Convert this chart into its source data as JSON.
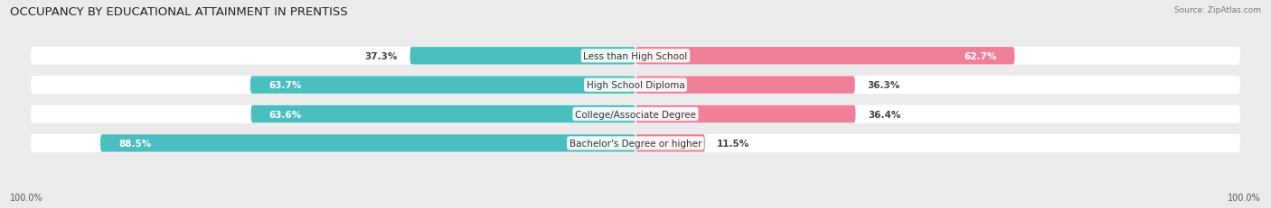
{
  "title": "OCCUPANCY BY EDUCATIONAL ATTAINMENT IN PRENTISS",
  "source": "Source: ZipAtlas.com",
  "categories": [
    "Less than High School",
    "High School Diploma",
    "College/Associate Degree",
    "Bachelor's Degree or higher"
  ],
  "owner_pct": [
    37.3,
    63.7,
    63.6,
    88.5
  ],
  "renter_pct": [
    62.7,
    36.3,
    36.4,
    11.5
  ],
  "owner_color": "#4BBFBF",
  "renter_color": "#F08098",
  "bg_color": "#ebebeb",
  "bar_bg_color": "#ffffff",
  "title_fontsize": 9.5,
  "label_fontsize": 7.5,
  "tick_fontsize": 7,
  "bar_height": 0.62,
  "x_left_label": "100.0%",
  "x_right_label": "100.0%"
}
